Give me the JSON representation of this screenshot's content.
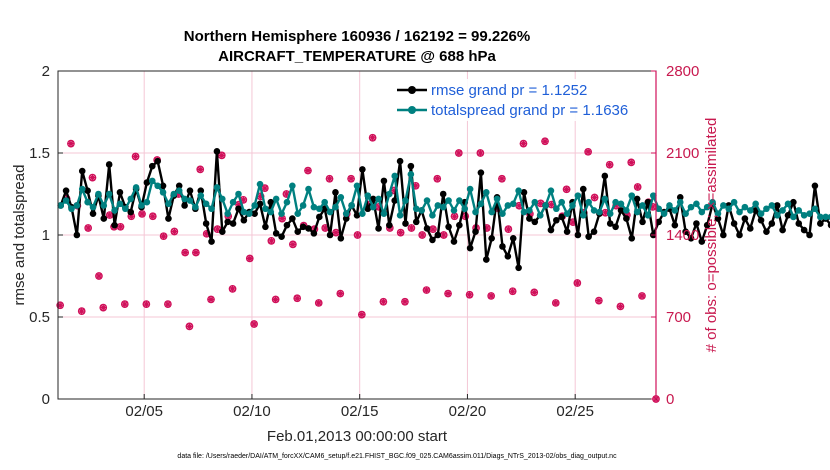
{
  "chart_data": {
    "type": "line",
    "title_line1": "Northern Hemisphere 160936 / 162192 = 99.226%",
    "title_line2": "AIRCRAFT_TEMPERATURE @ 688 hPa",
    "xlabel": "Feb.01,2013 00:00:00 start",
    "ylabel": "rmse and totalspread",
    "ylabel_right": "# of obs: o=possible; ×=assimilated",
    "footnote": "data file: /Users/raeder/DAI/ATM_forcXX/CAM6_setup/f.e21.FHIST_BGC.f09_025.CAM6assim.011/Diags_NTrS_2013-02/obs_diag_output.nc",
    "xlim": [
      1.0,
      28.75
    ],
    "ylim": [
      0,
      2
    ],
    "ylim_right": [
      0,
      2800
    ],
    "x_ticks": [
      {
        "value": 5,
        "label": "02/05"
      },
      {
        "value": 10,
        "label": "02/10"
      },
      {
        "value": 15,
        "label": "02/15"
      },
      {
        "value": 20,
        "label": "02/20"
      },
      {
        "value": 25,
        "label": "02/25"
      }
    ],
    "y_ticks": [
      {
        "value": 0,
        "label": "0"
      },
      {
        "value": 0.5,
        "label": "0.5"
      },
      {
        "value": 1,
        "label": "1"
      },
      {
        "value": 1.5,
        "label": "1.5"
      },
      {
        "value": 2,
        "label": "2"
      }
    ],
    "y_ticks_right": [
      {
        "value": 0,
        "label": "0"
      },
      {
        "value": 700,
        "label": "700"
      },
      {
        "value": 1400,
        "label": "1400"
      },
      {
        "value": 2100,
        "label": "2100"
      },
      {
        "value": 2800,
        "label": "2800"
      }
    ],
    "grid": true,
    "legend_position": "top-right",
    "colors": {
      "rmse": "#000000",
      "spread": "#008080",
      "obs": "#d0105a",
      "grid": "#f4c7d6"
    },
    "x_start": 1.125,
    "x_step": 0.25,
    "series": [
      {
        "name": "rmse grand pr = 1.1252",
        "color": "#000000",
        "values": [
          1.18,
          1.27,
          1.17,
          1.0,
          1.39,
          1.27,
          1.13,
          1.24,
          1.1,
          1.43,
          1.06,
          1.26,
          1.17,
          1.14,
          1.28,
          1.17,
          1.32,
          1.42,
          1.45,
          1.3,
          1.1,
          1.24,
          1.3,
          1.18,
          1.27,
          1.16,
          1.27,
          1.07,
          0.96,
          1.51,
          1.02,
          1.08,
          1.07,
          1.16,
          1.09,
          1.14,
          1.13,
          1.19,
          1.05,
          1.2,
          1.01,
          0.99,
          1.06,
          1.1,
          1.02,
          1.05,
          1.04,
          1.01,
          1.11,
          1.16,
          1.0,
          1.26,
          0.98,
          1.1,
          1.18,
          1.12,
          1.4,
          1.16,
          1.22,
          1.04,
          1.33,
          1.06,
          1.21,
          1.45,
          1.07,
          1.42,
          1.08,
          1.15,
          1.04,
          0.97,
          1.0,
          1.25,
          1.05,
          0.96,
          1.06,
          1.2,
          0.92,
          1.02,
          1.38,
          0.85,
          0.98,
          1.23,
          0.93,
          0.87,
          0.98,
          0.8,
          1.26,
          1.1,
          1.08,
          1.12,
          1.18,
          1.03,
          1.09,
          1.11,
          1.02,
          1.2,
          1.0,
          1.28,
          0.99,
          1.02,
          1.13,
          1.36,
          1.07,
          1.05,
          1.15,
          1.1,
          0.98,
          1.22,
          1.08,
          1.2,
          1.0,
          1.08,
          1.14,
          1.16,
          1.06,
          1.23,
          1.02,
          0.98,
          1.07,
          0.96,
          1.06,
          1.19,
          1.1,
          1.0,
          1.18,
          1.07,
          1.0,
          1.1,
          1.04,
          1.15,
          1.09,
          1.02,
          1.07,
          1.18,
          1.03,
          1.12,
          1.2,
          1.07,
          1.03,
          1.0,
          1.3,
          1.07,
          1.1,
          1.06
        ]
      },
      {
        "name": "totalspread grand pr = 1.1636",
        "color": "#008080",
        "values": [
          1.18,
          1.21,
          1.16,
          1.18,
          1.28,
          1.2,
          1.17,
          1.25,
          1.18,
          1.25,
          1.15,
          1.19,
          1.16,
          1.22,
          1.29,
          1.18,
          1.2,
          1.33,
          1.3,
          1.26,
          1.19,
          1.25,
          1.27,
          1.22,
          1.21,
          1.17,
          1.24,
          1.19,
          1.16,
          1.29,
          1.22,
          1.13,
          1.2,
          1.25,
          1.14,
          1.13,
          1.18,
          1.31,
          1.16,
          1.14,
          1.22,
          1.13,
          1.2,
          1.3,
          1.13,
          1.18,
          1.28,
          1.17,
          1.16,
          1.2,
          1.14,
          1.17,
          1.23,
          1.13,
          1.18,
          1.3,
          1.13,
          1.24,
          1.17,
          1.22,
          1.13,
          1.25,
          1.36,
          1.12,
          1.21,
          1.37,
          1.16,
          1.15,
          1.21,
          1.12,
          1.18,
          1.17,
          1.21,
          1.15,
          1.21,
          1.16,
          1.28,
          1.14,
          1.19,
          1.26,
          1.14,
          1.22,
          1.13,
          1.18,
          1.19,
          1.27,
          1.14,
          1.15,
          1.2,
          1.12,
          1.18,
          1.27,
          1.16,
          1.2,
          1.13,
          1.18,
          1.24,
          1.12,
          1.2,
          1.15,
          1.14,
          1.22,
          1.13,
          1.2,
          1.19,
          1.15,
          1.24,
          1.14,
          1.18,
          1.12,
          1.24,
          1.16,
          1.13,
          1.18,
          1.15,
          1.2,
          1.13,
          1.17,
          1.19,
          1.14,
          1.17,
          1.2,
          1.13,
          1.18,
          1.16,
          1.2,
          1.14,
          1.17,
          1.15,
          1.19,
          1.13,
          1.16,
          1.18,
          1.12,
          1.15,
          1.19,
          1.11,
          1.15,
          1.12,
          1.13,
          1.16,
          1.11,
          1.11,
          1.11
        ]
      }
    ],
    "obs_possible": [
      {
        "x": 1.1,
        "y": 800
      },
      {
        "x": 1.4,
        "y": 1710
      },
      {
        "x": 1.6,
        "y": 2180
      },
      {
        "x": 1.9,
        "y": 1650
      },
      {
        "x": 2.1,
        "y": 750
      },
      {
        "x": 2.4,
        "y": 1460
      },
      {
        "x": 2.6,
        "y": 1890
      },
      {
        "x": 2.9,
        "y": 1050
      },
      {
        "x": 3.1,
        "y": 780
      },
      {
        "x": 3.4,
        "y": 1570
      },
      {
        "x": 3.6,
        "y": 1470
      },
      {
        "x": 3.9,
        "y": 1470
      },
      {
        "x": 4.1,
        "y": 810
      },
      {
        "x": 4.4,
        "y": 1560
      },
      {
        "x": 4.6,
        "y": 2070
      },
      {
        "x": 4.9,
        "y": 1580
      },
      {
        "x": 5.1,
        "y": 810
      },
      {
        "x": 5.4,
        "y": 1560
      },
      {
        "x": 5.6,
        "y": 2040
      },
      {
        "x": 5.9,
        "y": 1390
      },
      {
        "x": 6.1,
        "y": 810
      },
      {
        "x": 6.4,
        "y": 1430
      },
      {
        "x": 6.6,
        "y": 1750
      },
      {
        "x": 6.9,
        "y": 1250
      },
      {
        "x": 7.1,
        "y": 620
      },
      {
        "x": 7.4,
        "y": 1250
      },
      {
        "x": 7.6,
        "y": 1960
      },
      {
        "x": 7.9,
        "y": 1410
      },
      {
        "x": 8.1,
        "y": 850
      },
      {
        "x": 8.4,
        "y": 1450
      },
      {
        "x": 8.6,
        "y": 2080
      },
      {
        "x": 8.9,
        "y": 1560
      },
      {
        "x": 9.1,
        "y": 940
      },
      {
        "x": 9.4,
        "y": 1660
      },
      {
        "x": 9.6,
        "y": 1700
      },
      {
        "x": 9.9,
        "y": 1200
      },
      {
        "x": 10.1,
        "y": 640
      },
      {
        "x": 10.4,
        "y": 1730
      },
      {
        "x": 10.6,
        "y": 1800
      },
      {
        "x": 10.9,
        "y": 1350
      },
      {
        "x": 11.1,
        "y": 850
      },
      {
        "x": 11.4,
        "y": 1540
      },
      {
        "x": 11.6,
        "y": 1750
      },
      {
        "x": 11.9,
        "y": 1320
      },
      {
        "x": 12.1,
        "y": 860
      },
      {
        "x": 12.4,
        "y": 1480
      },
      {
        "x": 12.6,
        "y": 1950
      },
      {
        "x": 12.9,
        "y": 1450
      },
      {
        "x": 13.1,
        "y": 820
      },
      {
        "x": 13.4,
        "y": 1460
      },
      {
        "x": 13.6,
        "y": 1880
      },
      {
        "x": 13.9,
        "y": 1420
      },
      {
        "x": 14.1,
        "y": 900
      },
      {
        "x": 14.4,
        "y": 1580
      },
      {
        "x": 14.6,
        "y": 1880
      },
      {
        "x": 14.9,
        "y": 1400
      },
      {
        "x": 15.1,
        "y": 720
      },
      {
        "x": 15.4,
        "y": 1660
      },
      {
        "x": 15.6,
        "y": 2230
      },
      {
        "x": 15.9,
        "y": 1640
      },
      {
        "x": 16.1,
        "y": 830
      },
      {
        "x": 16.4,
        "y": 1460
      },
      {
        "x": 16.6,
        "y": 1780
      },
      {
        "x": 16.9,
        "y": 1420
      },
      {
        "x": 17.1,
        "y": 830
      },
      {
        "x": 17.4,
        "y": 1460
      },
      {
        "x": 17.6,
        "y": 1820
      },
      {
        "x": 17.9,
        "y": 1400
      },
      {
        "x": 18.1,
        "y": 930
      },
      {
        "x": 18.4,
        "y": 1450
      },
      {
        "x": 18.6,
        "y": 1880
      },
      {
        "x": 18.9,
        "y": 1400
      },
      {
        "x": 19.1,
        "y": 900
      },
      {
        "x": 19.4,
        "y": 1560
      },
      {
        "x": 19.6,
        "y": 2100
      },
      {
        "x": 19.9,
        "y": 1560
      },
      {
        "x": 20.1,
        "y": 890
      },
      {
        "x": 20.4,
        "y": 1460
      },
      {
        "x": 20.6,
        "y": 2100
      },
      {
        "x": 20.9,
        "y": 1460
      },
      {
        "x": 21.1,
        "y": 880
      },
      {
        "x": 21.4,
        "y": 1630
      },
      {
        "x": 21.6,
        "y": 1880
      },
      {
        "x": 21.9,
        "y": 1450
      },
      {
        "x": 22.1,
        "y": 920
      },
      {
        "x": 22.4,
        "y": 1650
      },
      {
        "x": 22.6,
        "y": 2180
      },
      {
        "x": 22.9,
        "y": 1580
      },
      {
        "x": 23.1,
        "y": 910
      },
      {
        "x": 23.4,
        "y": 1670
      },
      {
        "x": 23.6,
        "y": 2200
      },
      {
        "x": 23.9,
        "y": 1660
      },
      {
        "x": 24.1,
        "y": 820
      },
      {
        "x": 24.4,
        "y": 1560
      },
      {
        "x": 24.6,
        "y": 1790
      },
      {
        "x": 24.9,
        "y": 1510
      },
      {
        "x": 25.1,
        "y": 990
      },
      {
        "x": 25.4,
        "y": 1590
      },
      {
        "x": 25.6,
        "y": 2110
      },
      {
        "x": 25.9,
        "y": 1720
      },
      {
        "x": 26.1,
        "y": 840
      },
      {
        "x": 26.4,
        "y": 1590
      },
      {
        "x": 26.6,
        "y": 2000
      },
      {
        "x": 26.9,
        "y": 1650
      },
      {
        "x": 27.1,
        "y": 790
      },
      {
        "x": 27.4,
        "y": 1570
      },
      {
        "x": 27.6,
        "y": 2020
      },
      {
        "x": 27.9,
        "y": 1810
      },
      {
        "x": 28.1,
        "y": 880
      },
      {
        "x": 28.4,
        "y": 1680
      },
      {
        "x": 28.6,
        "y": 1640
      },
      {
        "x": 28.75,
        "y": 0
      }
    ]
  }
}
